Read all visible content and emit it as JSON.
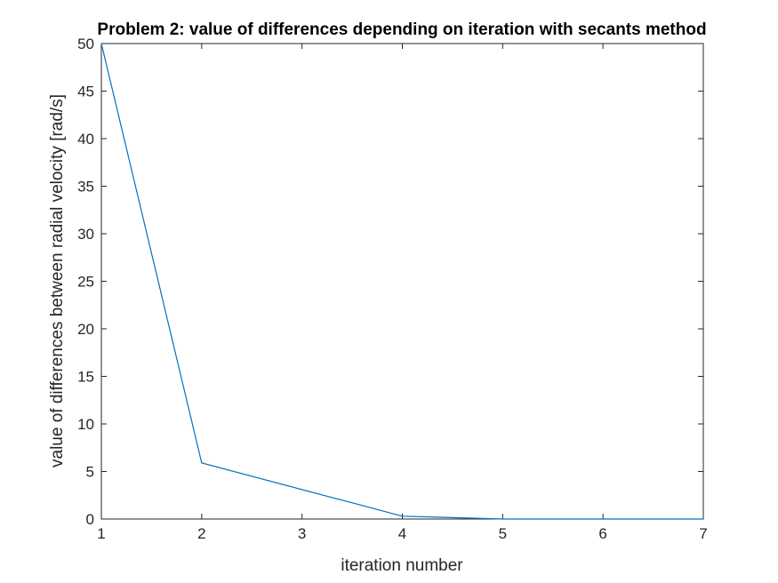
{
  "chart_data": {
    "type": "line",
    "title": "Problem 2: value of differences depending on iteration with secants method",
    "xlabel": "iteration number",
    "ylabel": "value of differences between radial velocity [rad/s]",
    "x_ticks": [
      "1",
      "2",
      "3",
      "4",
      "5",
      "6",
      "7"
    ],
    "y_ticks": [
      "0",
      "5",
      "10",
      "15",
      "20",
      "25",
      "30",
      "35",
      "40",
      "45",
      "50"
    ],
    "x_tick_values": [
      1,
      2,
      3,
      4,
      5,
      6,
      7
    ],
    "y_tick_values": [
      0,
      5,
      10,
      15,
      20,
      25,
      30,
      35,
      40,
      45,
      50
    ],
    "xlim": [
      1,
      7
    ],
    "ylim": [
      0,
      50
    ],
    "grid": false,
    "box": true,
    "series": [
      {
        "color": "#0072bd",
        "x": [
          1,
          2,
          4,
          5,
          6,
          7
        ],
        "values": [
          50,
          5.9,
          0.3,
          0.0,
          0.0,
          0.0
        ]
      }
    ]
  }
}
